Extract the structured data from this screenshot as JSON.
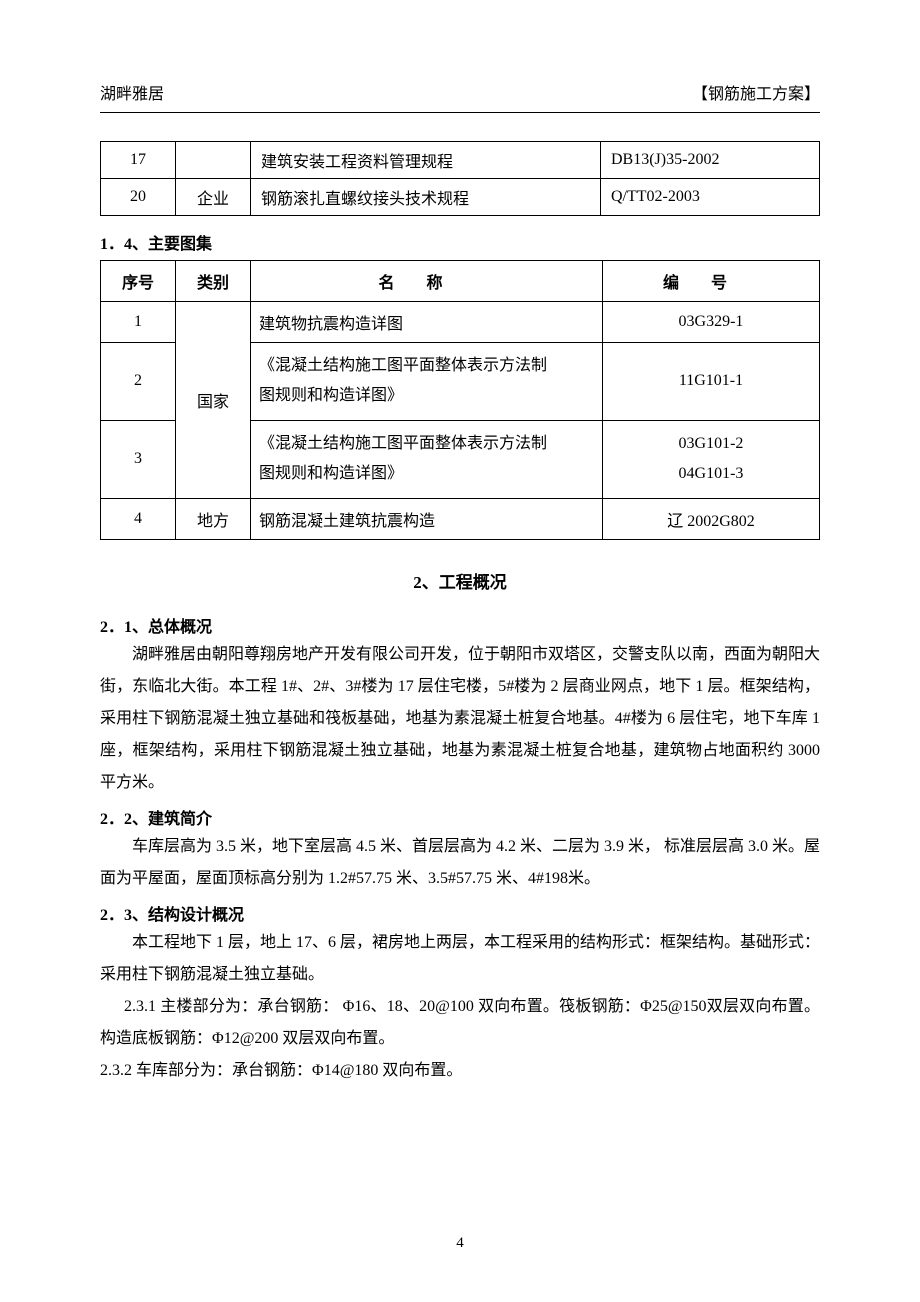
{
  "header": {
    "left": "湖畔雅居",
    "right": "【钢筋施工方案】"
  },
  "table1": {
    "rows": [
      {
        "num": "17",
        "cat": "",
        "name": "建筑安装工程资料管理规程",
        "code": "DB13(J)35-2002"
      },
      {
        "num": "20",
        "cat": "企业",
        "name": "钢筋滚扎直螺纹接头技术规程",
        "code": "Q/TT02-2003"
      }
    ]
  },
  "sec14": {
    "label": "1．4、主要图集"
  },
  "table2": {
    "head": {
      "num": "序号",
      "cat": "类别",
      "name": "名称",
      "code": "编号"
    },
    "catA": "国家",
    "catB": "地方",
    "rows": [
      {
        "num": "1",
        "name": "建筑物抗震构造详图",
        "code": "03G329-1"
      },
      {
        "num": "2",
        "name_l1": "《混凝土结构施工图平面整体表示方法制",
        "name_l2": "图规则和构造详图》",
        "code": "11G101-1"
      },
      {
        "num": "3",
        "name_l1": "《混凝土结构施工图平面整体表示方法制",
        "name_l2": "图规则和构造详图》",
        "code_l1": "03G101-2",
        "code_l2": "04G101-3"
      },
      {
        "num": "4",
        "name": "钢筋混凝土建筑抗震构造",
        "code": "辽 2002G802"
      }
    ]
  },
  "sec2": {
    "title": "2、工程概况"
  },
  "sec21": {
    "label": "2．1、总体概况",
    "p1": "湖畔雅居由朝阳尊翔房地产开发有限公司开发，位于朝阳市双塔区，交警支队以南，西面为朝阳大街，东临北大街。本工程 1#、2#、3#楼为 17 层住宅楼，5#楼为 2 层商业网点，地下 1 层。框架结构，采用柱下钢筋混凝土独立基础和筏板基础，地基为素混凝土桩复合地基。4#楼为 6 层住宅，地下车库 1 座，框架结构，采用柱下钢筋混凝土独立基础，地基为素混凝土桩复合地基，建筑物占地面积约 3000 平方米。"
  },
  "sec22": {
    "label": "2．2、建筑简介",
    "p1": "车库层高为 3.5 米，地下室层高 4.5 米、首层层高为 4.2 米、二层为 3.9 米， 标准层层高 3.0 米。屋面为平屋面，屋面顶标高分别为 1.2#57.75 米、3.5#57.75 米、4#198米。"
  },
  "sec23": {
    "label": "2．3、结构设计概况",
    "p1": "本工程地下 1 层，地上 17、6 层，裙房地上两层，本工程采用的结构形式：框架结构。基础形式：采用柱下钢筋混凝土独立基础。",
    "p2": "2.3.1 主楼部分为：承台钢筋： Φ16、18、20@100 双向布置。筏板钢筋：Φ25@150双层双向布置。构造底板钢筋：Φ12@200 双层双向布置。",
    "p3": "2.3.2 车库部分为：承台钢筋：Φ14@180 双向布置。"
  },
  "page_number": "4"
}
